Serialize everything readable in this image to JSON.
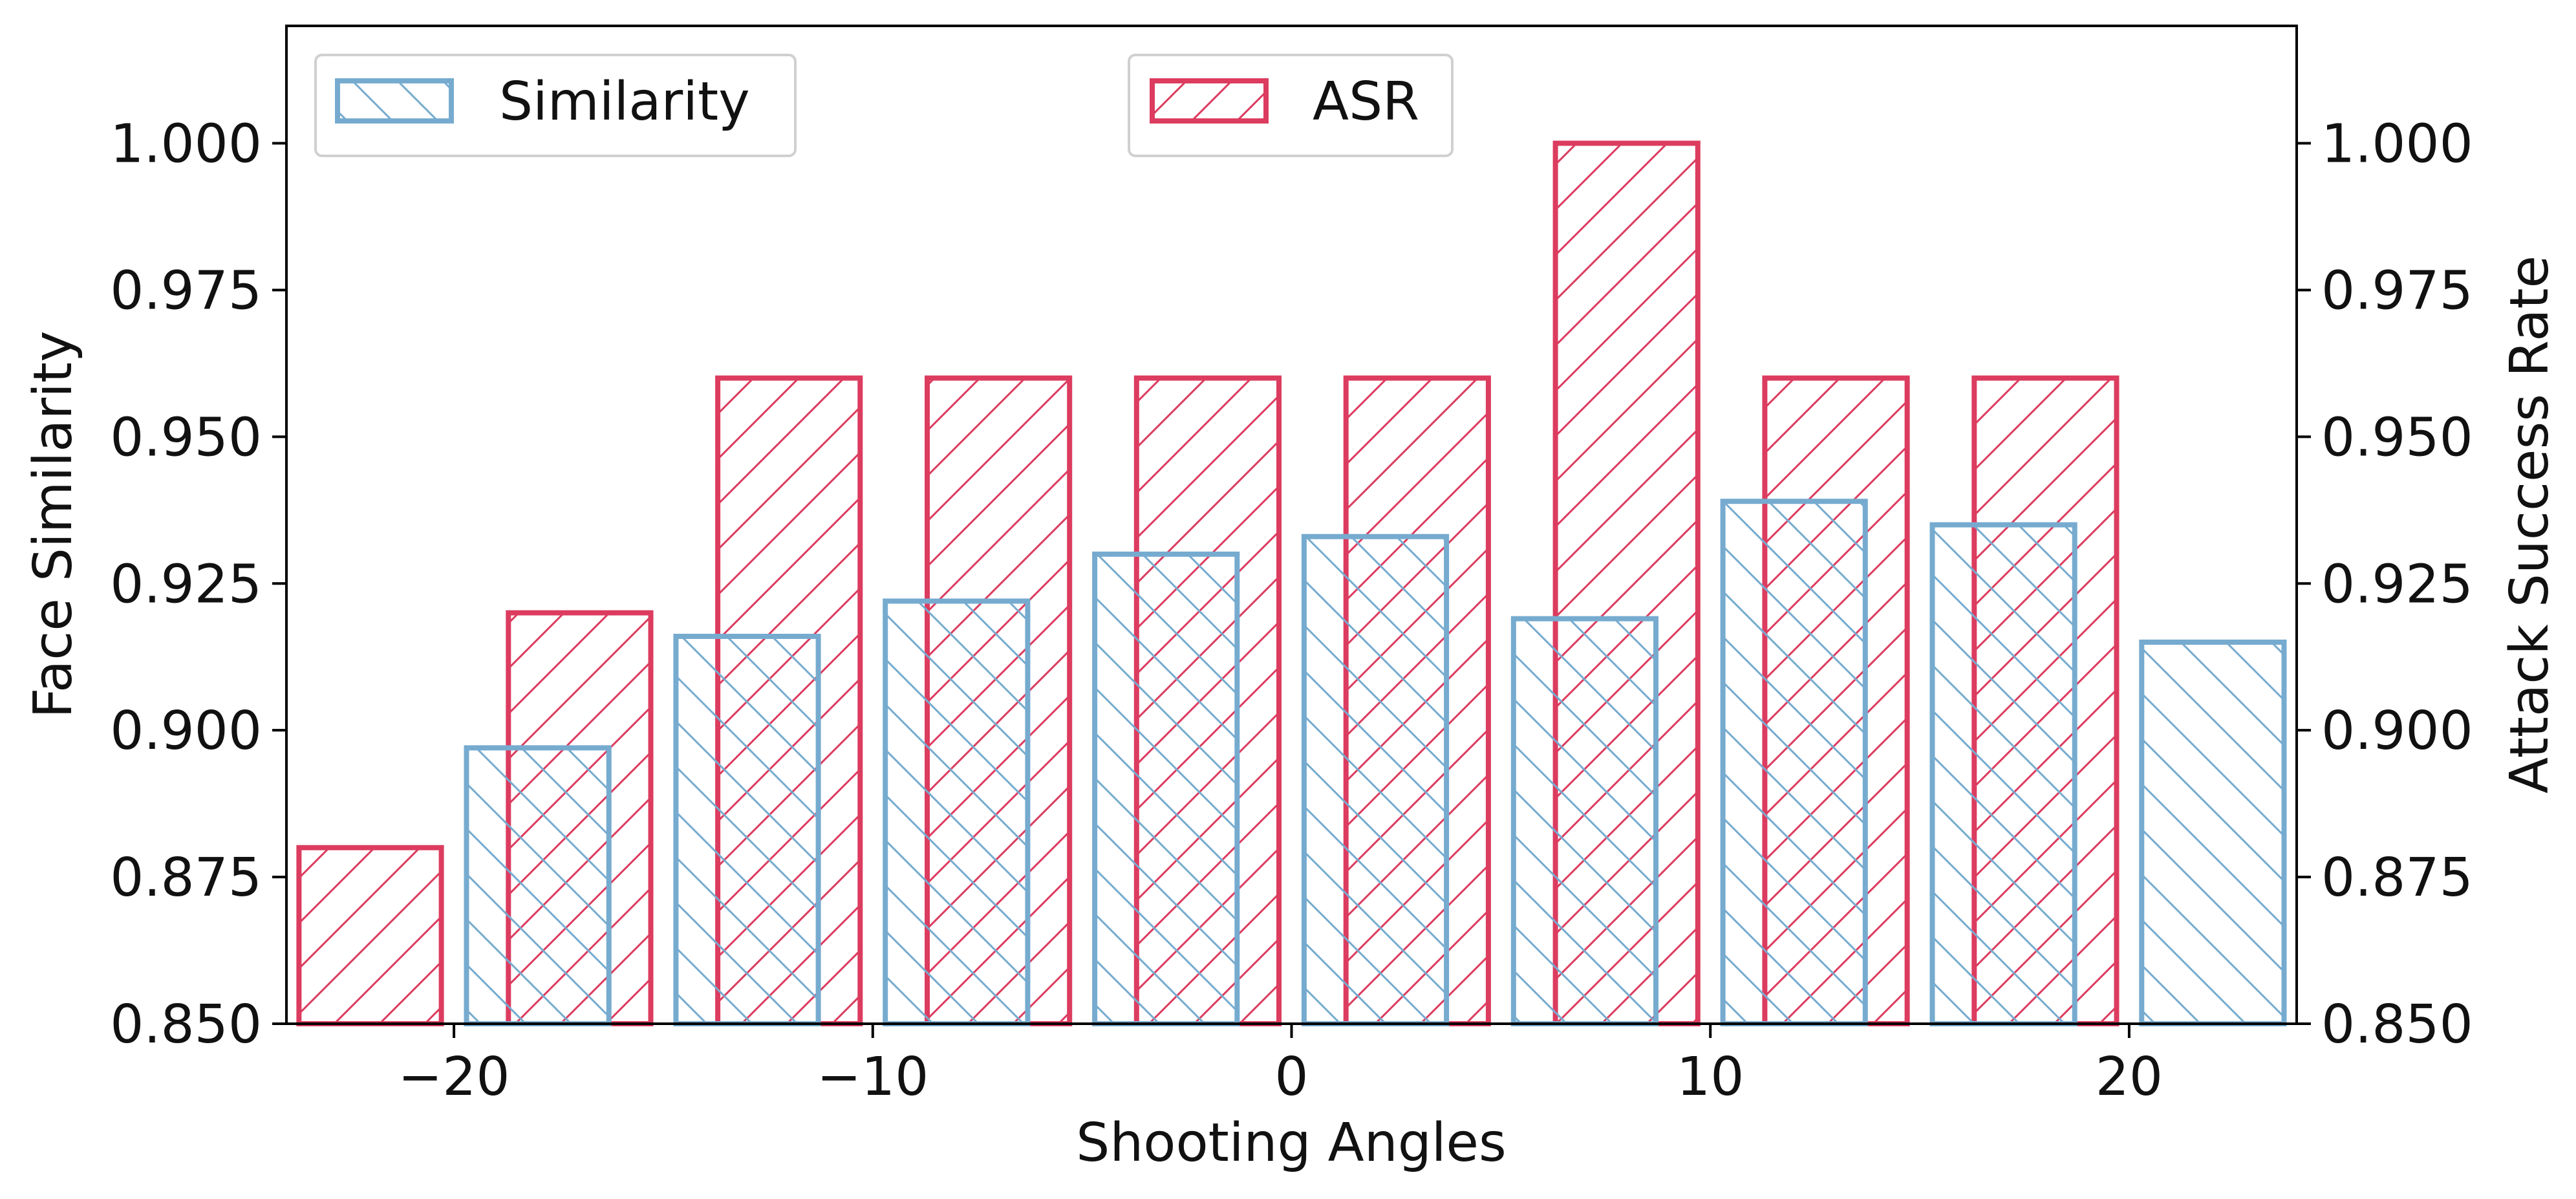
{
  "chart_data": {
    "type": "bar",
    "title": "",
    "xlabel": "Shooting Angles",
    "ylabel_left": "Face Similarity",
    "ylabel_right": "Attack Success Rate",
    "x_ticks": [
      "−20",
      "−10",
      "0",
      "10",
      "20"
    ],
    "x_tick_values": [
      -20,
      -10,
      0,
      10,
      20
    ],
    "xlim": [
      -24,
      24
    ],
    "ylim": [
      0.85,
      1.02
    ],
    "y_ticks": [
      "0.850",
      "0.875",
      "0.900",
      "0.925",
      "0.950",
      "0.975",
      "1.000"
    ],
    "y_tick_values": [
      0.85,
      0.875,
      0.9,
      0.925,
      0.95,
      0.975,
      1.0
    ],
    "x": [
      -20,
      -15,
      -10,
      -5,
      0,
      5,
      10,
      15,
      20
    ],
    "series": [
      {
        "name": "ASR",
        "axis": "right",
        "color": "#dc3c5f",
        "hatch": "/",
        "offset": -2,
        "values": [
          0.88,
          0.92,
          0.96,
          0.96,
          0.96,
          0.96,
          1.0,
          0.96,
          0.96
        ]
      },
      {
        "name": "Similarity",
        "axis": "left",
        "color": "#76abcf",
        "hatch": "\\",
        "offset": 2,
        "values": [
          0.897,
          0.916,
          0.922,
          0.93,
          0.933,
          0.919,
          0.939,
          0.935,
          0.915
        ]
      }
    ],
    "legend": [
      {
        "label": "Similarity",
        "position": "upper-left"
      },
      {
        "label": "ASR",
        "position": "upper-center"
      }
    ]
  }
}
